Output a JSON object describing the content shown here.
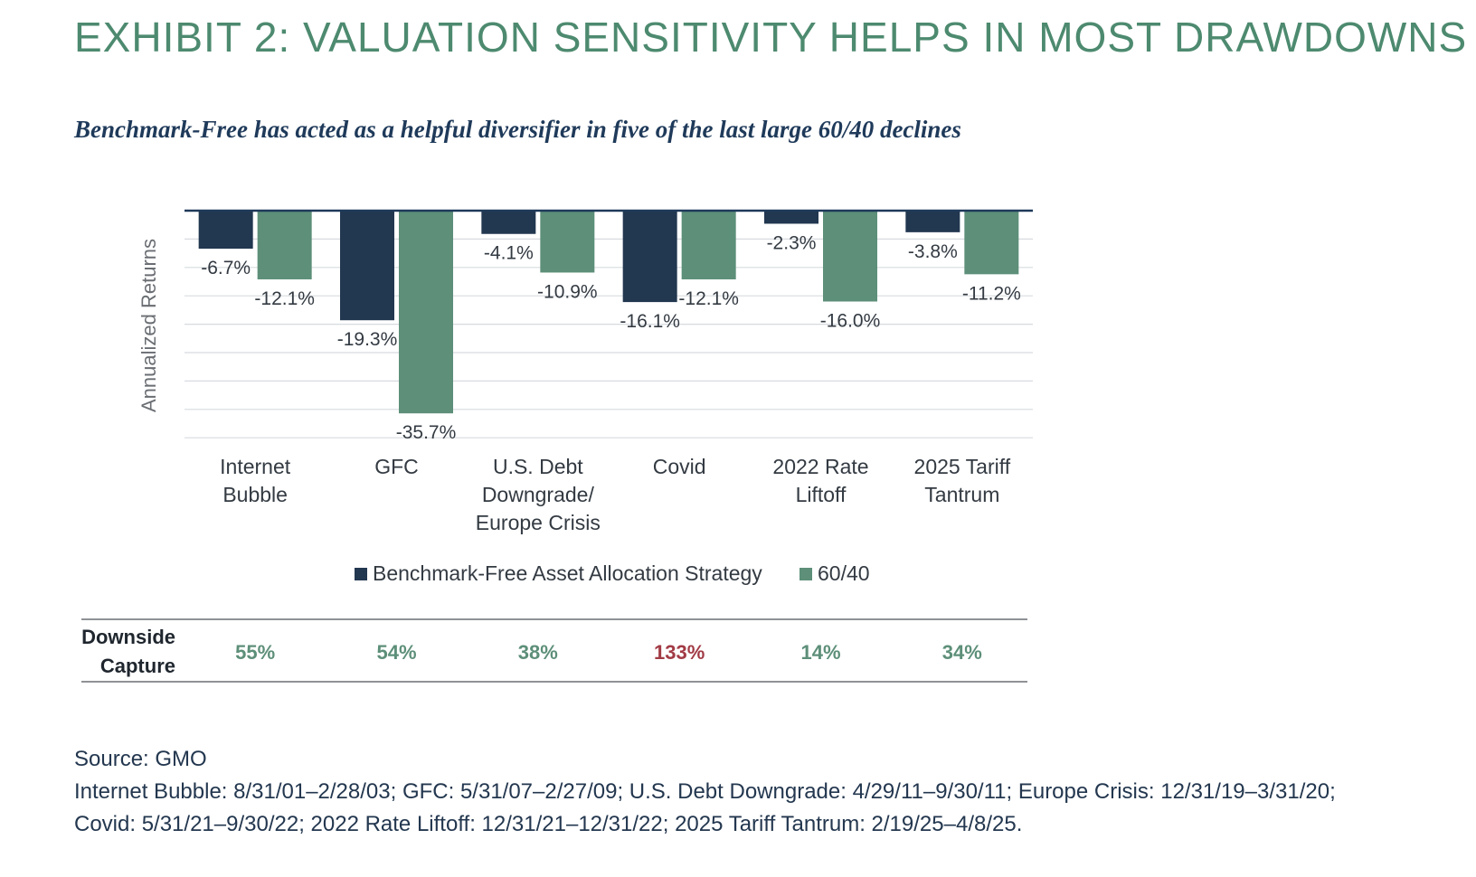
{
  "header": {
    "title": "EXHIBIT 2: VALUATION SENSITIVITY HELPS IN MOST DRAWDOWNS",
    "subtitle": "Benchmark-Free has acted as a helpful diversifier in five of the last large 60/40 declines"
  },
  "colors": {
    "title": "#4d8a6f",
    "subtitle": "#1f3a5a",
    "series_benchmark_free": "#223750",
    "series_60_40": "#5d8f79",
    "capture_normal": "#5d8f79",
    "capture_highlight": "#a23b45"
  },
  "chart_data": {
    "type": "bar",
    "ylabel": "Annualized Returns",
    "categories": [
      [
        "Internet",
        "Bubble"
      ],
      [
        "GFC"
      ],
      [
        "U.S. Debt",
        "Downgrade/",
        "Europe Crisis"
      ],
      [
        "Covid"
      ],
      [
        "2022 Rate",
        "Liftoff"
      ],
      [
        "2025 Tariff",
        "Tantrum"
      ]
    ],
    "series": [
      {
        "name": "Benchmark-Free Asset Allocation Strategy",
        "values": [
          -6.7,
          -19.3,
          -4.1,
          -16.1,
          -2.3,
          -3.8
        ],
        "labels": [
          "-6.7%",
          "-19.3%",
          "-4.1%",
          "-16.1%",
          "-2.3%",
          "-3.8%"
        ]
      },
      {
        "name": "60/40",
        "values": [
          -12.1,
          -35.7,
          -10.9,
          -12.1,
          -16.0,
          -11.2
        ],
        "labels": [
          "-12.1%",
          "-35.7%",
          "-10.9%",
          "-12.1%",
          "-16.0%",
          "-11.2%"
        ]
      }
    ],
    "ylim": [
      -40,
      0
    ],
    "grid": true,
    "legend_position": "bottom"
  },
  "downside_capture": {
    "label_line1": "Downside",
    "label_line2": "Capture",
    "values": [
      "55%",
      "54%",
      "38%",
      "133%",
      "14%",
      "34%"
    ],
    "highlight_index": 3
  },
  "footer": {
    "source": "Source: GMO",
    "note_line1": "Internet Bubble: 8/31/01–2/28/03; GFC: 5/31/07–2/27/09; U.S. Debt Downgrade: 4/29/11–9/30/11; Europe Crisis: 12/31/19–3/31/20;",
    "note_line2": "Covid: 5/31/21–9/30/22; 2022 Rate Liftoff: 12/31/21–12/31/22; 2025 Tariff Tantrum: 2/19/25–4/8/25."
  }
}
